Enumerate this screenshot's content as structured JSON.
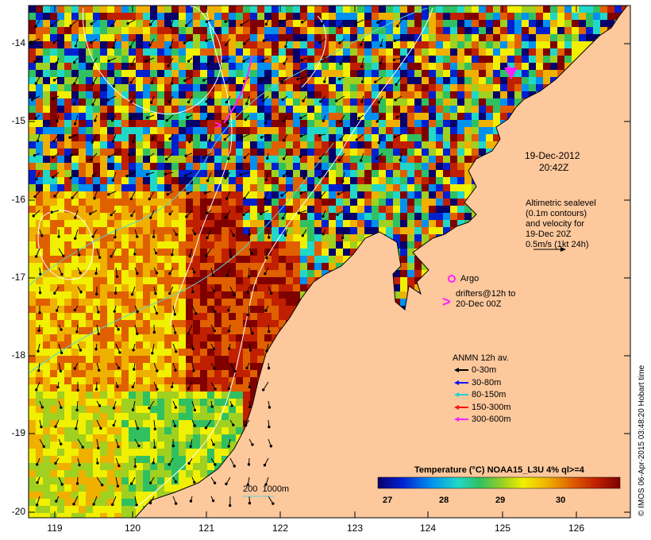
{
  "map": {
    "lat_labels": [
      "-14",
      "-15",
      "-16",
      "-17",
      "-18",
      "-19",
      "-20"
    ],
    "lon_labels": [
      "119",
      "120",
      "121",
      "122",
      "123",
      "124",
      "125",
      "126"
    ],
    "land_color": "#fdc89c",
    "bathymetry_color": "#5ed4d0"
  },
  "annotations": {
    "date": "19-Dec-2012",
    "time": "20:42Z",
    "altimetry_lines": [
      "Altimetric sealevel",
      "(0.1m contours)",
      "and velocity for",
      "19-Dec 20Z",
      "0.5m/s (1kt 24h)"
    ],
    "argo_label": "Argo",
    "drifters_lines": [
      "drifters@12h to",
      "20-Dec 00Z"
    ],
    "bathymetry_label": "200  1000m"
  },
  "anmn_legend": {
    "title": "ANMN 12h av.",
    "items": [
      {
        "label": "0-30m",
        "color": "#000000"
      },
      {
        "label": "30-80m",
        "color": "#1010ff"
      },
      {
        "label": "80-150m",
        "color": "#20d0d0"
      },
      {
        "label": "150-300m",
        "color": "#ff1010"
      },
      {
        "label": "300-600m",
        "color": "#ff20ff"
      }
    ]
  },
  "colorbar": {
    "title": "Temperature (°C) NOAA15_L3U 4% ql>=4",
    "ticks": [
      "27",
      "28",
      "29",
      "30"
    ]
  },
  "credit": "© IMOS 06-Apr-2015 03:48:20 Hobart time"
}
